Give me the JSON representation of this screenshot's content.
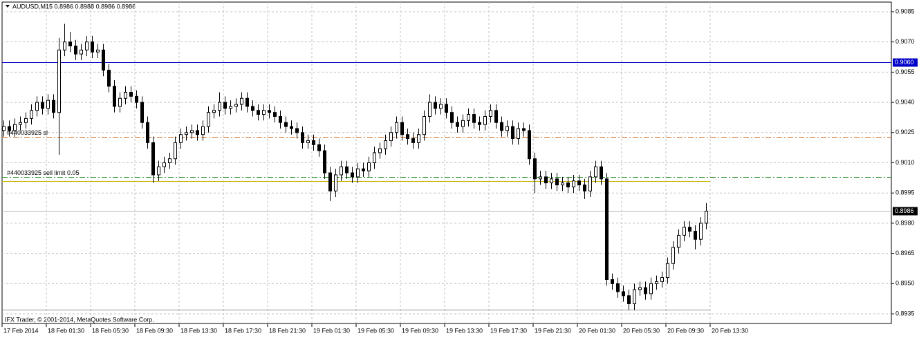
{
  "chart_data": {
    "type": "candlestick",
    "title": "AUDUSD,M15  0.8986 0.8988 0.8986 0.8986",
    "footer": "IFX Trader, © 2001-2014, MetaQuotes Software Corp.",
    "open": [
      0.9026,
      0.9028,
      0.9026,
      0.9029,
      0.903,
      0.9032,
      0.9036,
      0.904,
      0.9037,
      0.9041,
      0.9035,
      0.9066,
      0.907,
      0.9068,
      0.9064,
      0.9066,
      0.907,
      0.9065,
      0.9066,
      0.9056,
      0.9048,
      0.9038,
      0.9042,
      0.9045,
      0.9043,
      0.904,
      0.903,
      0.902,
      0.9004,
      0.9008,
      0.901,
      0.9012,
      0.902,
      0.9024,
      0.9025,
      0.9026,
      0.9024,
      0.9028,
      0.9035,
      0.9036,
      0.904,
      0.9037,
      0.9038,
      0.9039,
      0.9042,
      0.9038,
      0.9036,
      0.9034,
      0.9036,
      0.9035,
      0.9033,
      0.903,
      0.9028,
      0.9027,
      0.9025,
      0.902,
      0.9021,
      0.9019,
      0.9016,
      0.9005,
      0.8996,
      0.9004,
      0.9008,
      0.9005,
      0.9003,
      0.9007,
      0.9006,
      0.901,
      0.9015,
      0.9017,
      0.9021,
      0.9025,
      0.903,
      0.9024,
      0.9022,
      0.902,
      0.9024,
      0.9033,
      0.904,
      0.9037,
      0.9039,
      0.9035,
      0.903,
      0.9028,
      0.9031,
      0.9034,
      0.903,
      0.9029,
      0.9033,
      0.9036,
      0.903,
      0.9026,
      0.9028,
      0.9022,
      0.9027,
      0.9026,
      0.9012,
      0.9002,
      0.9003,
      0.9,
      0.9002,
      0.8999,
      0.9,
      0.8998,
      0.9001,
      0.8999,
      0.8996,
      0.9003,
      0.9008,
      0.9002,
      0.8952,
      0.895,
      0.8946,
      0.8944,
      0.894,
      0.8947,
      0.8948,
      0.8945,
      0.895,
      0.8951,
      0.8953,
      0.896,
      0.8968,
      0.8974,
      0.8978,
      0.8976,
      0.8972,
      0.898
    ],
    "high": [
      0.9031,
      0.9031,
      0.9032,
      0.9033,
      0.9035,
      0.9039,
      0.9043,
      0.9043,
      0.9044,
      0.9044,
      0.9072,
      0.9079,
      0.9075,
      0.9071,
      0.9069,
      0.9073,
      0.9073,
      0.9069,
      0.9069,
      0.9059,
      0.9051,
      0.9045,
      0.9048,
      0.9048,
      0.9046,
      0.9043,
      0.9033,
      0.9023,
      0.9011,
      0.9013,
      0.9015,
      0.9023,
      0.9027,
      0.9028,
      0.9029,
      0.9029,
      0.9031,
      0.9038,
      0.9039,
      0.9045,
      0.9043,
      0.9041,
      0.9042,
      0.9045,
      0.9045,
      0.9041,
      0.9039,
      0.9039,
      0.9039,
      0.9038,
      0.9036,
      0.9033,
      0.9031,
      0.903,
      0.9028,
      0.9024,
      0.9024,
      0.9022,
      0.9019,
      0.9008,
      0.9007,
      0.9011,
      0.9011,
      0.9008,
      0.901,
      0.901,
      0.9013,
      0.9018,
      0.902,
      0.9024,
      0.9028,
      0.9033,
      0.9033,
      0.9027,
      0.9025,
      0.9027,
      0.9036,
      0.9044,
      0.9043,
      0.9042,
      0.9042,
      0.9038,
      0.9033,
      0.9034,
      0.9037,
      0.9037,
      0.9033,
      0.9036,
      0.9039,
      0.9039,
      0.9033,
      0.9031,
      0.9031,
      0.903,
      0.903,
      0.9029,
      0.9015,
      0.9006,
      0.9006,
      0.9005,
      0.9005,
      0.9003,
      0.9003,
      0.9004,
      0.9004,
      0.9002,
      0.9006,
      0.9011,
      0.9011,
      0.9005,
      0.8955,
      0.8953,
      0.8949,
      0.8947,
      0.895,
      0.8951,
      0.8951,
      0.8953,
      0.8954,
      0.8956,
      0.8963,
      0.8971,
      0.8977,
      0.8981,
      0.8981,
      0.8979,
      0.8983,
      0.899
    ],
    "low": [
      0.9023,
      0.9023,
      0.9023,
      0.9026,
      0.9027,
      0.9029,
      0.9033,
      0.9034,
      0.9034,
      0.9032,
      0.9014,
      0.9063,
      0.9065,
      0.9061,
      0.9061,
      0.9063,
      0.9062,
      0.9062,
      0.9053,
      0.9045,
      0.9035,
      0.9035,
      0.9039,
      0.904,
      0.9037,
      0.9027,
      0.9017,
      0.9,
      0.9001,
      0.9005,
      0.9007,
      0.9009,
      0.9017,
      0.9021,
      0.9022,
      0.9021,
      0.9021,
      0.9025,
      0.9032,
      0.9033,
      0.9034,
      0.9034,
      0.9035,
      0.9036,
      0.9035,
      0.9033,
      0.9031,
      0.9031,
      0.9032,
      0.903,
      0.9027,
      0.9025,
      0.9024,
      0.9022,
      0.9017,
      0.9017,
      0.9016,
      0.9013,
      0.9002,
      0.8991,
      0.8993,
      0.9001,
      0.9002,
      0.9,
      0.9,
      0.9003,
      0.9003,
      0.9007,
      0.9012,
      0.9014,
      0.9018,
      0.9022,
      0.9021,
      0.9019,
      0.9017,
      0.9017,
      0.9021,
      0.903,
      0.9034,
      0.9034,
      0.9032,
      0.9027,
      0.9025,
      0.9025,
      0.9028,
      0.9027,
      0.9026,
      0.9026,
      0.903,
      0.9027,
      0.9023,
      0.9023,
      0.9019,
      0.9019,
      0.9023,
      0.9009,
      0.8995,
      0.8999,
      0.8997,
      0.8997,
      0.8996,
      0.8996,
      0.8995,
      0.8995,
      0.8996,
      0.8992,
      0.8993,
      0.9,
      0.8999,
      0.8949,
      0.8947,
      0.8943,
      0.8941,
      0.8937,
      0.8937,
      0.8944,
      0.8942,
      0.8942,
      0.8947,
      0.8948,
      0.895,
      0.8957,
      0.8965,
      0.8971,
      0.8973,
      0.8967,
      0.8969,
      0.8977
    ],
    "close": [
      0.9028,
      0.9026,
      0.9029,
      0.903,
      0.9032,
      0.9036,
      0.904,
      0.9037,
      0.9041,
      0.9035,
      0.9066,
      0.907,
      0.9068,
      0.9064,
      0.9066,
      0.907,
      0.9065,
      0.9066,
      0.9056,
      0.9048,
      0.9038,
      0.9042,
      0.9045,
      0.9043,
      0.904,
      0.903,
      0.902,
      0.9004,
      0.9008,
      0.901,
      0.9012,
      0.902,
      0.9024,
      0.9025,
      0.9026,
      0.9024,
      0.9028,
      0.9035,
      0.9036,
      0.904,
      0.9037,
      0.9038,
      0.9039,
      0.9042,
      0.9038,
      0.9036,
      0.9034,
      0.9036,
      0.9035,
      0.9033,
      0.903,
      0.9028,
      0.9027,
      0.9025,
      0.902,
      0.9021,
      0.9019,
      0.9016,
      0.9005,
      0.8996,
      0.9004,
      0.9008,
      0.9005,
      0.9003,
      0.9007,
      0.9006,
      0.901,
      0.9015,
      0.9017,
      0.9021,
      0.9025,
      0.903,
      0.9024,
      0.9022,
      0.902,
      0.9024,
      0.9033,
      0.904,
      0.9037,
      0.9039,
      0.9035,
      0.903,
      0.9028,
      0.9031,
      0.9034,
      0.903,
      0.9029,
      0.9033,
      0.9036,
      0.903,
      0.9026,
      0.9028,
      0.9022,
      0.9027,
      0.9026,
      0.9012,
      0.9002,
      0.9003,
      0.9,
      0.9002,
      0.8999,
      0.9,
      0.8998,
      0.9001,
      0.8999,
      0.8996,
      0.9003,
      0.9008,
      0.9002,
      0.8952,
      0.895,
      0.8946,
      0.8944,
      0.894,
      0.8947,
      0.8948,
      0.8945,
      0.895,
      0.8951,
      0.8953,
      0.896,
      0.8968,
      0.8974,
      0.8978,
      0.8976,
      0.8972,
      0.898,
      0.8986
    ],
    "bull_color": "#ffffff",
    "bear_color": "#000000",
    "xlim": [
      0,
      160
    ],
    "xticks": [
      {
        "value": 0,
        "label": "17 Feb 2014"
      },
      {
        "value": 8,
        "label": "18 Feb 01:30"
      },
      {
        "value": 16,
        "label": "18 Feb 05:30"
      },
      {
        "value": 24,
        "label": "18 Feb 09:30"
      },
      {
        "value": 32,
        "label": "18 Feb 13:30"
      },
      {
        "value": 40,
        "label": "18 Feb 17:30"
      },
      {
        "value": 48,
        "label": "18 Feb 21:30"
      },
      {
        "value": 56,
        "label": "19 Feb 01:30"
      },
      {
        "value": 64,
        "label": "19 Feb 05:30"
      },
      {
        "value": 72,
        "label": "19 Feb 09:30"
      },
      {
        "value": 80,
        "label": "19 Feb 13:30"
      },
      {
        "value": 88,
        "label": "19 Feb 17:30"
      },
      {
        "value": 96,
        "label": "19 Feb 21:30"
      },
      {
        "value": 104,
        "label": "20 Feb 01:30"
      },
      {
        "value": 112,
        "label": "20 Feb 05:30"
      },
      {
        "value": 120,
        "label": "20 Feb 09:30"
      },
      {
        "value": 128,
        "label": "20 Feb 13:30"
      }
    ],
    "ylim": [
      0.893,
      0.909
    ],
    "yticks": [
      0.9085,
      {
        "value": 0.907,
        "label": "0.9070"
      },
      0.9055,
      {
        "value": 0.904,
        "label": "0.9040"
      },
      0.9025,
      {
        "value": 0.901,
        "label": "0.9010"
      },
      0.8995,
      {
        "value": 0.898,
        "label": "0.8980"
      },
      0.8965,
      {
        "value": 0.895,
        "label": "0.8950"
      },
      0.8935
    ],
    "grid": true,
    "levels": [
      {
        "value": 0.906,
        "label": "0.9060",
        "color": "#0000c8",
        "style": "solid",
        "tag_color": "#0000c8"
      },
      {
        "value": 0.9023,
        "text": "#440033925 sl",
        "color": "#d2691e",
        "style": "dashdot"
      },
      {
        "value": 0.9003,
        "text": "#440033925 sell limit 0.05",
        "color": "#228b22",
        "style": "dashdot"
      },
      {
        "value": 0.9001,
        "color": "#c8b400",
        "style": "solid",
        "end": 128
      },
      {
        "value": 0.8986,
        "label": "0.8986",
        "color": "#b4b4b4",
        "style": "solid",
        "tag_color": "#000000"
      },
      {
        "value": 0.8937,
        "color": "#909090",
        "style": "solid",
        "end": 128
      }
    ]
  }
}
